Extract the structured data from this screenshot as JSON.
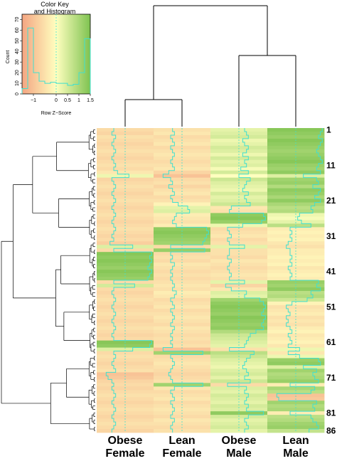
{
  "chart_data": {
    "type": "heatmap",
    "columns": [
      "Obese Female",
      "Lean Female",
      "Obese Male",
      "Lean Male"
    ],
    "column_labels": [
      [
        "Obese",
        "Female"
      ],
      [
        "Lean",
        "Female"
      ],
      [
        "Obese",
        "Male"
      ],
      [
        "Lean",
        "Male"
      ]
    ],
    "row_tick_labels": [
      "1",
      "11",
      "21",
      "31",
      "41",
      "51",
      "61",
      "71",
      "81",
      "86"
    ],
    "row_count": 86,
    "values_rowZ": [
      [
        -0.6,
        -0.5,
        0.3,
        1.4
      ],
      [
        -0.7,
        -0.4,
        0.4,
        1.3
      ],
      [
        -0.5,
        -0.6,
        0.5,
        1.2
      ],
      [
        -0.6,
        -0.5,
        0.2,
        1.4
      ],
      [
        -0.7,
        -0.4,
        0.3,
        1.3
      ],
      [
        -0.6,
        -0.6,
        0.5,
        1.2
      ],
      [
        -0.5,
        -0.5,
        0.4,
        1.1
      ],
      [
        -0.6,
        -0.4,
        0.2,
        1.2
      ],
      [
        -0.7,
        -0.5,
        0.5,
        1.3
      ],
      [
        -0.6,
        -0.6,
        0.3,
        1.4
      ],
      [
        -0.5,
        -0.5,
        0.4,
        1.2
      ],
      [
        -0.6,
        -0.4,
        0.1,
        1.1
      ],
      [
        -0.4,
        -0.7,
        0.5,
        1.3
      ],
      [
        0.2,
        -1.0,
        0.0,
        0.4
      ],
      [
        -0.7,
        -0.6,
        0.6,
        1.1
      ],
      [
        -0.6,
        -0.5,
        0.4,
        1.2
      ],
      [
        -0.5,
        -0.7,
        0.3,
        0.9
      ],
      [
        -0.6,
        -0.5,
        0.2,
        1.3
      ],
      [
        -0.7,
        -0.4,
        0.5,
        1.2
      ],
      [
        -0.6,
        -0.6,
        0.3,
        1.0
      ],
      [
        -0.5,
        -0.5,
        0.4,
        1.3
      ],
      [
        -0.6,
        -0.2,
        0.6,
        1.0
      ],
      [
        -0.7,
        0.3,
        -0.4,
        0.8
      ],
      [
        -0.6,
        0.4,
        -0.5,
        0.9
      ],
      [
        -0.5,
        -0.3,
        1.3,
        0.2
      ],
      [
        -0.6,
        -0.4,
        1.4,
        0.1
      ],
      [
        -0.7,
        -0.5,
        1.2,
        0.3
      ],
      [
        -0.6,
        -0.3,
        0.2,
        0.8
      ],
      [
        -0.5,
        1.3,
        -0.6,
        -0.3
      ],
      [
        -0.6,
        1.4,
        -0.5,
        -0.2
      ],
      [
        -0.7,
        1.3,
        -0.4,
        -0.3
      ],
      [
        -0.6,
        1.2,
        -0.6,
        -0.2
      ],
      [
        -0.8,
        1.1,
        -0.5,
        -0.4
      ],
      [
        0.4,
        -0.6,
        0.3,
        -0.5
      ],
      [
        -0.6,
        1.2,
        -0.5,
        -0.3
      ],
      [
        1.4,
        -0.6,
        -0.5,
        -0.3
      ],
      [
        1.3,
        -0.5,
        -0.6,
        -0.2
      ],
      [
        1.4,
        -0.6,
        -0.4,
        -0.3
      ],
      [
        1.3,
        -0.4,
        -0.5,
        -0.2
      ],
      [
        1.2,
        -0.5,
        -0.6,
        -0.4
      ],
      [
        1.4,
        -0.6,
        -0.5,
        -0.3
      ],
      [
        1.3,
        -0.5,
        -0.4,
        -0.2
      ],
      [
        1.2,
        -0.6,
        -0.5,
        -0.3
      ],
      [
        -0.6,
        -0.5,
        0.3,
        1.2
      ],
      [
        0.5,
        -0.4,
        -0.7,
        1.1
      ],
      [
        -0.6,
        -0.5,
        -0.4,
        1.3
      ],
      [
        -0.7,
        -0.3,
        0.4,
        0.8
      ],
      [
        -0.6,
        -0.4,
        0.3,
        0.9
      ],
      [
        -0.5,
        -0.6,
        1.1,
        0.6
      ],
      [
        -0.6,
        -0.5,
        1.3,
        -0.2
      ],
      [
        -0.7,
        -0.4,
        1.4,
        -0.5
      ],
      [
        -0.6,
        -0.6,
        1.3,
        -0.4
      ],
      [
        -0.5,
        -0.5,
        1.2,
        -0.3
      ],
      [
        -0.6,
        -0.4,
        1.4,
        -0.5
      ],
      [
        -0.7,
        -0.5,
        1.3,
        -0.4
      ],
      [
        -0.6,
        -0.6,
        1.2,
        -0.5
      ],
      [
        -0.5,
        -0.4,
        1.3,
        -0.3
      ],
      [
        -0.6,
        -0.5,
        0.9,
        -0.2
      ],
      [
        -0.7,
        -0.6,
        0.6,
        -0.4
      ],
      [
        -0.6,
        -0.5,
        0.5,
        -0.3
      ],
      [
        1.4,
        -0.6,
        0.4,
        -0.2
      ],
      [
        1.3,
        -0.5,
        0.3,
        -0.4
      ],
      [
        0.4,
        -1.0,
        -0.5,
        0.2
      ],
      [
        -0.6,
        1.1,
        0.8,
        -0.4
      ],
      [
        -0.5,
        -0.6,
        0.6,
        0.2
      ],
      [
        -0.6,
        -0.5,
        0.4,
        1.2
      ],
      [
        -0.7,
        -0.4,
        0.3,
        1.3
      ],
      [
        -0.6,
        -0.5,
        0.2,
        0.4
      ],
      [
        -0.5,
        -0.6,
        0.4,
        1.1
      ],
      [
        -1.0,
        -0.7,
        0.5,
        0.9
      ],
      [
        -0.9,
        -0.6,
        0.3,
        1.0
      ],
      [
        -0.7,
        -0.5,
        0.6,
        1.2
      ],
      [
        -0.6,
        1.1,
        -0.6,
        -0.3
      ],
      [
        -0.7,
        -0.4,
        0.4,
        1.0
      ],
      [
        -0.6,
        -0.6,
        0.3,
        0.8
      ],
      [
        -0.5,
        -0.5,
        0.5,
        -1.0
      ],
      [
        -0.6,
        -0.4,
        0.4,
        -0.9
      ],
      [
        -0.7,
        -0.6,
        0.3,
        1.1
      ],
      [
        -0.6,
        -0.5,
        0.5,
        0.9
      ],
      [
        -0.5,
        -0.4,
        0.4,
        1.0
      ],
      [
        -0.6,
        -0.5,
        1.3,
        -0.3
      ],
      [
        -0.7,
        -0.6,
        0.5,
        0.8
      ],
      [
        -0.6,
        -0.4,
        0.3,
        0.9
      ],
      [
        -0.5,
        -0.5,
        0.4,
        1.1
      ],
      [
        -0.6,
        -0.6,
        0.5,
        1.2
      ],
      [
        -0.7,
        -0.5,
        0.3,
        0.7
      ]
    ],
    "color_key": {
      "title_lines": [
        "Color Key",
        "and Histogram"
      ],
      "xlabel": "Row Z−Score",
      "ylabel": "Count",
      "x_ticks": [
        "−1",
        "0",
        "0.5",
        "1",
        "1.5"
      ],
      "x_tick_values": [
        -1,
        0,
        0.5,
        1,
        1.5
      ],
      "y_ticks": [
        "0",
        "10",
        "20",
        "30",
        "40",
        "50",
        "60",
        "70"
      ],
      "y_tick_values": [
        0,
        10,
        20,
        30,
        40,
        50,
        60,
        70
      ],
      "xlim": [
        -1.5,
        1.5
      ],
      "ylim": [
        0,
        75
      ],
      "histogram_counts": [
        5,
        62,
        20,
        12,
        10,
        11,
        10,
        10,
        8,
        9,
        20,
        52
      ],
      "color_low": "#f4a582",
      "color_mid": "#ffffbf",
      "color_high": "#7fc351"
    },
    "trace_color": "#40e0d0",
    "dendrogram_color": "#000000"
  }
}
